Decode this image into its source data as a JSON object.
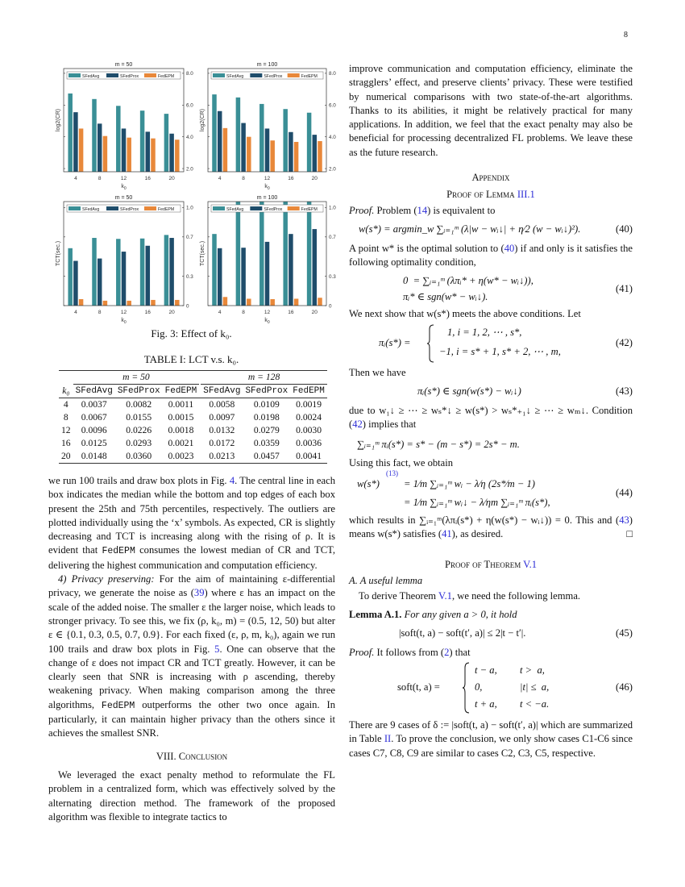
{
  "page_number": "8",
  "colors": {
    "SFedAvg": "#3a8f96",
    "SFedProx": "#1f4d6b",
    "FedEPM": "#e8883a",
    "link": "#2b2bd6"
  },
  "chart_data": [
    {
      "type": "bar",
      "title": "m = 50",
      "xlabel": "k0",
      "ylabel": "log2(CR)",
      "categories": [
        "4",
        "8",
        "12",
        "16",
        "20"
      ],
      "yticks": [
        "2.0",
        "4.0",
        "6.0",
        "8.0"
      ],
      "ylim": [
        1.8,
        8.3
      ],
      "legend": "top",
      "grid": false,
      "series": [
        {
          "name": "SFedAvg",
          "values": [
            6.73,
            6.38,
            5.95,
            5.65,
            5.45
          ]
        },
        {
          "name": "SFedProx",
          "values": [
            5.55,
            4.83,
            4.52,
            4.32,
            4.2
          ]
        },
        {
          "name": "FedEPM",
          "values": [
            4.52,
            4.05,
            3.95,
            3.9,
            3.82
          ]
        }
      ]
    },
    {
      "type": "bar",
      "title": "m = 100",
      "xlabel": "k0",
      "ylabel": "log2(CR)",
      "categories": [
        "4",
        "8",
        "12",
        "16",
        "20"
      ],
      "yticks": [
        "2.0",
        "4.0",
        "6.0",
        "8.0"
      ],
      "ylim": [
        1.8,
        8.3
      ],
      "legend": "top",
      "grid": false,
      "series": [
        {
          "name": "SFedAvg",
          "values": [
            6.67,
            6.48,
            6.07,
            5.75,
            5.52
          ]
        },
        {
          "name": "SFedProx",
          "values": [
            5.62,
            4.87,
            4.52,
            4.3,
            4.13
          ]
        },
        {
          "name": "FedEPM",
          "values": [
            4.55,
            4.0,
            3.77,
            3.68,
            3.73
          ]
        }
      ]
    },
    {
      "type": "bar",
      "title": "m = 50",
      "xlabel": "k0",
      "ylabel": "TCT(sec.)",
      "categories": [
        "4",
        "8",
        "12",
        "16",
        "20"
      ],
      "yticks": [
        "0",
        "0.3",
        "0.7",
        "1.0"
      ],
      "ylim": [
        0,
        1.06
      ],
      "legend": "top",
      "grid": false,
      "series": [
        {
          "name": "SFedAvg",
          "values": [
            0.585,
            0.69,
            0.68,
            0.684,
            0.72
          ]
        },
        {
          "name": "SFedProx",
          "values": [
            0.456,
            0.48,
            0.55,
            0.61,
            0.69
          ]
        },
        {
          "name": "FedEPM",
          "values": [
            0.066,
            0.05,
            0.05,
            0.058,
            0.058
          ]
        }
      ]
    },
    {
      "type": "bar",
      "title": "m = 100",
      "xlabel": "k0",
      "ylabel": "TCT(sec.)",
      "categories": [
        "4",
        "8",
        "12",
        "16",
        "20"
      ],
      "yticks": [
        "0",
        "0.3",
        "0.7",
        "1.0"
      ],
      "ylim": [
        0,
        1.06
      ],
      "legend": "top",
      "grid": false,
      "series": [
        {
          "name": "SFedAvg",
          "values": [
            0.73,
            1.1,
            1.1,
            1.1,
            1.1
          ]
        },
        {
          "name": "SFedProx",
          "values": [
            0.585,
            0.59,
            0.65,
            0.73,
            0.78
          ]
        },
        {
          "name": "FedEPM",
          "values": [
            0.088,
            0.07,
            0.066,
            0.07,
            0.08
          ]
        }
      ]
    }
  ],
  "figure": {
    "caption": "Fig. 3: Effect of k₀."
  },
  "table": {
    "caption": "TABLE I: LCT v.s. k₀.",
    "groups": [
      "m = 50",
      "m = 128"
    ],
    "k_header": "k₀",
    "columns": [
      "SFedAvg",
      "SFedProx",
      "FedEPM",
      "SFedAvg",
      "SFedProx",
      "FedEPM"
    ],
    "rows": [
      [
        "4",
        "0.0037",
        "0.0082",
        "0.0011",
        "0.0058",
        "0.0109",
        "0.0019"
      ],
      [
        "8",
        "0.0067",
        "0.0155",
        "0.0015",
        "0.0097",
        "0.0198",
        "0.0024"
      ],
      [
        "12",
        "0.0096",
        "0.0226",
        "0.0018",
        "0.0132",
        "0.0279",
        "0.0030"
      ],
      [
        "16",
        "0.0125",
        "0.0293",
        "0.0021",
        "0.0172",
        "0.0359",
        "0.0036"
      ],
      [
        "20",
        "0.0148",
        "0.0360",
        "0.0023",
        "0.0213",
        "0.0457",
        "0.0041"
      ]
    ]
  },
  "left": {
    "p1": [
      "we run 100 trails and draw box plots in Fig. ",
      "4",
      ". The central line in each box indicates the median while the bottom and top edges of each box present the 25th and 75th percentiles, respectively. The outliers are plotted individually using the ‘x’ symbols. As expected, CR is slightly decreasing and TCT is increasing along with the rising of ρ. It is evident that ",
      "FedEPM",
      " consumes the lowest median of CR and TCT, delivering the highest communication and computation efficiency."
    ],
    "p2_head": "4) Privacy preserving:",
    "p2": [
      " For the aim of maintaining ε-differential privacy, we generate the noise as (",
      "39",
      ") where ε has an impact on the scale of the added noise. The smaller ε the larger noise, which leads to stronger privacy. To see this, we fix (ρ, k₀, m) = (0.5, 12, 50) but alter ε ∈ {0.1, 0.3, 0.5, 0.7, 0.9}. For each fixed (ε, ρ, m, k₀), again we run 100 trails and draw box plots in Fig. ",
      "5",
      ". One can observe that the change of ε does not impact CR and TCT greatly. However, it can be clearly seen that SNR is increasing with ρ ascending, thereby weakening privacy. When making comparison among the three algorithms, ",
      "FedEPM",
      " outperforms the other two once again. In particularly, it can maintain higher privacy than the others since it achieves the smallest SNR."
    ],
    "section": "VIII. Conclusion",
    "p3": "We leveraged the exact penalty method to reformulate the FL problem in a centralized form, which was effectively solved by the alternating direction method. The framework of the proposed algorithm was flexible to integrate tactics to"
  },
  "right": {
    "p0": "improve communication and computation efficiency, eliminate the stragglers’ effect, and preserve clients’ privacy. These were testified by numerical comparisons with two state-of-the-art algorithms. Thanks to its abilities, it might be relatively practical for many applications. In addition, we feel that the exact penalty may also be beneficial for processing decentralized FL problems. We leave these as the future research.",
    "appendix": "Appendix",
    "proof_lemma_heading": "Proof of Lemma ",
    "proof_lemma_ref": "III.1",
    "proof1": [
      "Proof.",
      " Problem (",
      "14",
      ") is equivalent to"
    ],
    "eq40": "w(s*) = argmin_w ∑ᵢ₌₁ᵐ (λ|w − wᵢ↓| + η⁄2 (w − wᵢ↓)²).",
    "eq40_num": "(40)",
    "p_opt": [
      "A point w* is the optimal solution to (",
      "40",
      ") if and only is it satisfies the following optimality condition,"
    ],
    "eq41a": "0  = ∑ᵢ₌₁ᵐ (λπᵢ* + η(w* − wᵢ↓)),",
    "eq41b": "πᵢ* ∈ sgn(w* − wᵢ↓).",
    "eq41_num": "(41)",
    "p_next": "We next show that w(s*) meets the above conditions. Let",
    "eq42_lhs": "πᵢ(s*) =",
    "eq42a": "1, i = 1, 2, ⋯ , s*,",
    "eq42b": "−1, i = s* + 1, s* + 2, ⋯ , m,",
    "eq42_num": "(42)",
    "p_then": "Then we have",
    "eq43": "πᵢ(s*) ∈ sgn(w(s*) − wᵢ↓)",
    "eq43_num": "(43)",
    "p_due": [
      "due to w₁↓ ≥ ⋯ ≥ wₛ*↓ ≥ w(s*) > wₛ*₊₁↓ ≥ ⋯ ≥ wₘ↓. Condition (",
      "42",
      ") implies that"
    ],
    "eq_sum": "∑ᵢ₌₁ᵐ πᵢ(s*) = s* − (m − s*) = 2s* − m.",
    "p_using": "Using this fact, we obtain",
    "eq44a_lhs": "w(s*)",
    "eq44a_ref": "(13)",
    "eq44a": "= 1⁄m ∑ᵢ₌₁ᵐ wᵢ − λ⁄η (2s*⁄m − 1)",
    "eq44b": "= 1⁄m ∑ᵢ₌₁ᵐ wᵢ↓ − λ⁄ηm ∑ᵢ₌₁ᵐ πᵢ(s*),",
    "eq44_num": "(44)",
    "p_which": [
      "which results in ∑ᵢ₌₁ᵐ(λπᵢ(s*) + η(w(s*) − wᵢ↓)) = 0. This and (",
      "43",
      ") means w(s*) satisfies (",
      "41",
      "), as desired."
    ],
    "qed": "□",
    "proof_thm_heading": "Proof of Theorem ",
    "proof_thm_ref": "V.1",
    "subsec": "A. A useful lemma",
    "p_derive": [
      "To derive Theorem ",
      "V.1",
      ", we need the following lemma."
    ],
    "lemma_head": "Lemma A.1.",
    "lemma_body": " For any given a > 0, it hold",
    "eq45": "|soft(t, a) − soft(t′, a)| ≤ 2|t − t′|.",
    "eq45_num": "(45)",
    "proof2": [
      "Proof.",
      " It follows from (",
      "2",
      ") that"
    ],
    "eq46_lhs": "soft(t, a) =",
    "eq46_cases": [
      [
        "t − a,",
        "t >  a,"
      ],
      [
        "0,",
        "|t| ≤  a,"
      ],
      [
        "t + a,",
        "t < −a."
      ]
    ],
    "eq46_num": "(46)",
    "p_cases": [
      "There are 9 cases of δ := |soft(t, a) − soft(t′, a)| which are summarized in Table ",
      "II",
      ". To prove the conclusion, we only show cases C1-C6 since cases C7, C8, C9 are similar to cases C2, C3, C5, respective."
    ]
  }
}
